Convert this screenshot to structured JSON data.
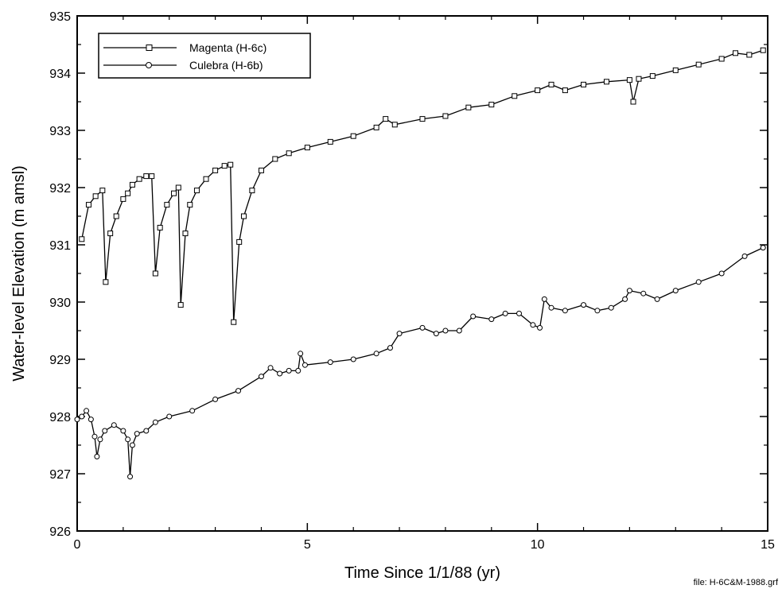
{
  "chart_data": {
    "type": "line",
    "xlabel": "Time Since 1/1/88 (yr)",
    "ylabel": "Water-level Elevation (m amsl)",
    "xlim": [
      0,
      15
    ],
    "ylim": [
      926,
      935
    ],
    "x_ticks": [
      0,
      5,
      10,
      15
    ],
    "y_ticks": [
      926,
      927,
      928,
      929,
      930,
      931,
      932,
      933,
      934,
      935
    ],
    "grid": false,
    "legend_position": "top-left",
    "footnote": "file: H-6C&M-1988.grf",
    "series": [
      {
        "name": "Magenta (H-6c)",
        "marker": "square",
        "points": [
          [
            0.1,
            931.1
          ],
          [
            0.25,
            931.7
          ],
          [
            0.4,
            931.85
          ],
          [
            0.55,
            931.95
          ],
          [
            0.62,
            930.35
          ],
          [
            0.72,
            931.2
          ],
          [
            0.85,
            931.5
          ],
          [
            1.0,
            931.8
          ],
          [
            1.1,
            931.9
          ],
          [
            1.2,
            932.05
          ],
          [
            1.35,
            932.15
          ],
          [
            1.5,
            932.2
          ],
          [
            1.62,
            932.2
          ],
          [
            1.7,
            930.5
          ],
          [
            1.8,
            931.3
          ],
          [
            1.95,
            931.7
          ],
          [
            2.1,
            931.9
          ],
          [
            2.2,
            932.0
          ],
          [
            2.25,
            929.95
          ],
          [
            2.35,
            931.2
          ],
          [
            2.45,
            931.7
          ],
          [
            2.6,
            931.95
          ],
          [
            2.8,
            932.15
          ],
          [
            3.0,
            932.3
          ],
          [
            3.2,
            932.38
          ],
          [
            3.33,
            932.4
          ],
          [
            3.4,
            929.65
          ],
          [
            3.52,
            931.05
          ],
          [
            3.62,
            931.5
          ],
          [
            3.8,
            931.95
          ],
          [
            4.0,
            932.3
          ],
          [
            4.3,
            932.5
          ],
          [
            4.6,
            932.6
          ],
          [
            5.0,
            932.7
          ],
          [
            5.5,
            932.8
          ],
          [
            6.0,
            932.9
          ],
          [
            6.5,
            933.05
          ],
          [
            6.7,
            933.2
          ],
          [
            6.9,
            933.1
          ],
          [
            7.5,
            933.2
          ],
          [
            8.0,
            933.25
          ],
          [
            8.5,
            933.4
          ],
          [
            9.0,
            933.45
          ],
          [
            9.5,
            933.6
          ],
          [
            10.0,
            933.7
          ],
          [
            10.3,
            933.8
          ],
          [
            10.6,
            933.7
          ],
          [
            11.0,
            933.8
          ],
          [
            11.5,
            933.85
          ],
          [
            12.0,
            933.88
          ],
          [
            12.08,
            933.5
          ],
          [
            12.2,
            933.9
          ],
          [
            12.5,
            933.95
          ],
          [
            13.0,
            934.05
          ],
          [
            13.5,
            934.15
          ],
          [
            14.0,
            934.25
          ],
          [
            14.3,
            934.35
          ],
          [
            14.6,
            934.32
          ],
          [
            14.9,
            934.4
          ]
        ]
      },
      {
        "name": "Culebra (H-6b)",
        "marker": "circle",
        "points": [
          [
            0.0,
            927.95
          ],
          [
            0.1,
            928.0
          ],
          [
            0.2,
            928.1
          ],
          [
            0.3,
            927.95
          ],
          [
            0.38,
            927.65
          ],
          [
            0.43,
            927.3
          ],
          [
            0.5,
            927.6
          ],
          [
            0.6,
            927.75
          ],
          [
            0.8,
            927.85
          ],
          [
            1.0,
            927.75
          ],
          [
            1.1,
            927.6
          ],
          [
            1.15,
            926.95
          ],
          [
            1.2,
            927.5
          ],
          [
            1.3,
            927.7
          ],
          [
            1.5,
            927.75
          ],
          [
            1.7,
            927.9
          ],
          [
            2.0,
            928.0
          ],
          [
            2.5,
            928.1
          ],
          [
            3.0,
            928.3
          ],
          [
            3.5,
            928.45
          ],
          [
            4.0,
            928.7
          ],
          [
            4.2,
            928.85
          ],
          [
            4.4,
            928.75
          ],
          [
            4.6,
            928.8
          ],
          [
            4.8,
            928.8
          ],
          [
            4.85,
            929.1
          ],
          [
            4.95,
            928.9
          ],
          [
            5.5,
            928.95
          ],
          [
            6.0,
            929.0
          ],
          [
            6.5,
            929.1
          ],
          [
            6.8,
            929.2
          ],
          [
            7.0,
            929.45
          ],
          [
            7.5,
            929.55
          ],
          [
            7.8,
            929.45
          ],
          [
            8.0,
            929.5
          ],
          [
            8.3,
            929.5
          ],
          [
            8.6,
            929.75
          ],
          [
            9.0,
            929.7
          ],
          [
            9.3,
            929.8
          ],
          [
            9.6,
            929.8
          ],
          [
            9.9,
            929.6
          ],
          [
            10.05,
            929.55
          ],
          [
            10.15,
            930.05
          ],
          [
            10.3,
            929.9
          ],
          [
            10.6,
            929.85
          ],
          [
            11.0,
            929.95
          ],
          [
            11.3,
            929.85
          ],
          [
            11.6,
            929.9
          ],
          [
            11.9,
            930.05
          ],
          [
            12.0,
            930.2
          ],
          [
            12.3,
            930.15
          ],
          [
            12.6,
            930.05
          ],
          [
            13.0,
            930.2
          ],
          [
            13.5,
            930.35
          ],
          [
            14.0,
            930.5
          ],
          [
            14.5,
            930.8
          ],
          [
            14.9,
            930.95
          ]
        ]
      }
    ]
  }
}
